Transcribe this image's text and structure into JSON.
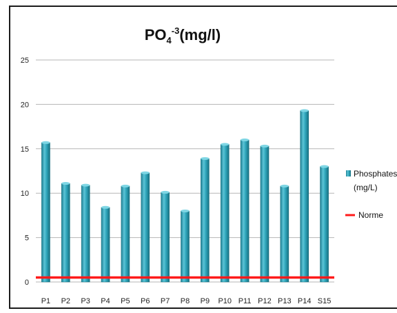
{
  "chart_data": {
    "type": "bar",
    "title": {
      "main": "PO",
      "subscript": "4",
      "superscript": "-3",
      "unit": "(mg/l)"
    },
    "categories": [
      "P1",
      "P2",
      "P3",
      "P4",
      "P5",
      "P6",
      "P7",
      "P8",
      "P9",
      "P10",
      "P11",
      "P12",
      "P13",
      "P14",
      "S15"
    ],
    "series": [
      {
        "name": "Phosphates (mg/L)",
        "legend_lines": [
          "Phosphates",
          "(mg/L)"
        ],
        "color": "#2b9fb5",
        "values": [
          15.7,
          11.1,
          10.9,
          8.4,
          10.8,
          12.3,
          10.1,
          8.0,
          13.9,
          15.5,
          16.0,
          15.3,
          10.8,
          19.3,
          13.0
        ]
      }
    ],
    "reference_line": {
      "name": "Norme",
      "value": 0.5,
      "color": "#ff1a1a"
    },
    "ylim": [
      0,
      25
    ],
    "yticks": [
      0,
      5,
      10,
      15,
      20,
      25
    ],
    "grid": true,
    "legend_position": "right",
    "xlabel": "",
    "ylabel": ""
  }
}
